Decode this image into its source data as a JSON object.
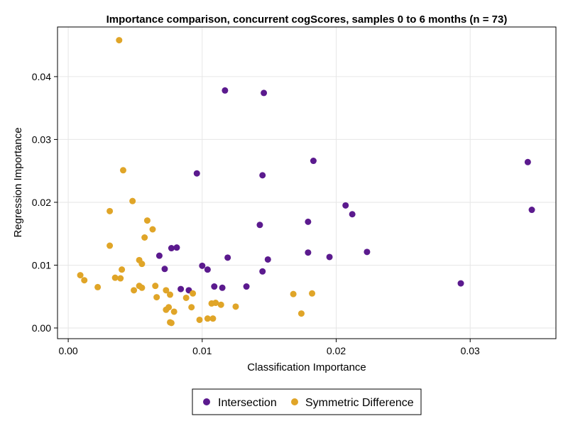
{
  "chart_data": {
    "type": "scatter",
    "title": "Importance comparison, concurrent cogScores, samples 0 to 6 months (n = 73)",
    "xlabel": "Classification Importance",
    "ylabel": "Regression Importance",
    "xlim": [
      -0.0008,
      0.0364
    ],
    "ylim": [
      -0.0017,
      0.0479
    ],
    "xticks": [
      0.0,
      0.01,
      0.02,
      0.03
    ],
    "xtick_labels": [
      "0.00",
      "0.01",
      "0.02",
      "0.03"
    ],
    "yticks": [
      0.0,
      0.01,
      0.02,
      0.03,
      0.04
    ],
    "ytick_labels": [
      "0.00",
      "0.01",
      "0.02",
      "0.03",
      "0.04"
    ],
    "grid": true,
    "legend_position": "bottom-center",
    "series": [
      {
        "name": "Intersection",
        "color": "#5b1a8e",
        "points": [
          [
            0.0117,
            0.0378
          ],
          [
            0.0146,
            0.0374
          ],
          [
            0.0183,
            0.0266
          ],
          [
            0.0096,
            0.0246
          ],
          [
            0.0145,
            0.0243
          ],
          [
            0.0343,
            0.0264
          ],
          [
            0.0346,
            0.0188
          ],
          [
            0.0207,
            0.0195
          ],
          [
            0.0212,
            0.0181
          ],
          [
            0.0179,
            0.0169
          ],
          [
            0.0143,
            0.0164
          ],
          [
            0.0077,
            0.0127
          ],
          [
            0.0081,
            0.0128
          ],
          [
            0.0068,
            0.0115
          ],
          [
            0.0119,
            0.0112
          ],
          [
            0.0179,
            0.012
          ],
          [
            0.0223,
            0.0121
          ],
          [
            0.0195,
            0.0113
          ],
          [
            0.0149,
            0.0109
          ],
          [
            0.0072,
            0.0094
          ],
          [
            0.01,
            0.0099
          ],
          [
            0.0104,
            0.0093
          ],
          [
            0.0145,
            0.009
          ],
          [
            0.0293,
            0.0071
          ],
          [
            0.0109,
            0.0066
          ],
          [
            0.0115,
            0.0064
          ],
          [
            0.0133,
            0.0066
          ],
          [
            0.0084,
            0.0062
          ],
          [
            0.009,
            0.006
          ]
        ]
      },
      {
        "name": "Symmetric Difference",
        "color": "#e0a528",
        "points": [
          [
            0.0038,
            0.0458
          ],
          [
            0.0041,
            0.0251
          ],
          [
            0.0048,
            0.0202
          ],
          [
            0.0031,
            0.0186
          ],
          [
            0.0059,
            0.0171
          ],
          [
            0.0063,
            0.0157
          ],
          [
            0.0057,
            0.0144
          ],
          [
            0.0031,
            0.0131
          ],
          [
            0.0053,
            0.0108
          ],
          [
            0.0055,
            0.0102
          ],
          [
            0.004,
            0.0093
          ],
          [
            0.0009,
            0.0084
          ],
          [
            0.0012,
            0.0076
          ],
          [
            0.0035,
            0.008
          ],
          [
            0.0039,
            0.0079
          ],
          [
            0.0022,
            0.0065
          ],
          [
            0.0053,
            0.0067
          ],
          [
            0.0055,
            0.0064
          ],
          [
            0.0049,
            0.006
          ],
          [
            0.0065,
            0.0067
          ],
          [
            0.0073,
            0.006
          ],
          [
            0.0076,
            0.0053
          ],
          [
            0.0066,
            0.0049
          ],
          [
            0.0088,
            0.0048
          ],
          [
            0.0093,
            0.0055
          ],
          [
            0.0107,
            0.0039
          ],
          [
            0.011,
            0.004
          ],
          [
            0.0114,
            0.0037
          ],
          [
            0.0125,
            0.0034
          ],
          [
            0.0092,
            0.0033
          ],
          [
            0.0075,
            0.0033
          ],
          [
            0.0073,
            0.0029
          ],
          [
            0.0079,
            0.0026
          ],
          [
            0.0104,
            0.0015
          ],
          [
            0.0108,
            0.0015
          ],
          [
            0.0098,
            0.0013
          ],
          [
            0.0076,
            0.0009
          ],
          [
            0.0077,
            0.0008
          ],
          [
            0.0168,
            0.0054
          ],
          [
            0.0182,
            0.0055
          ],
          [
            0.0174,
            0.0023
          ]
        ]
      }
    ]
  }
}
